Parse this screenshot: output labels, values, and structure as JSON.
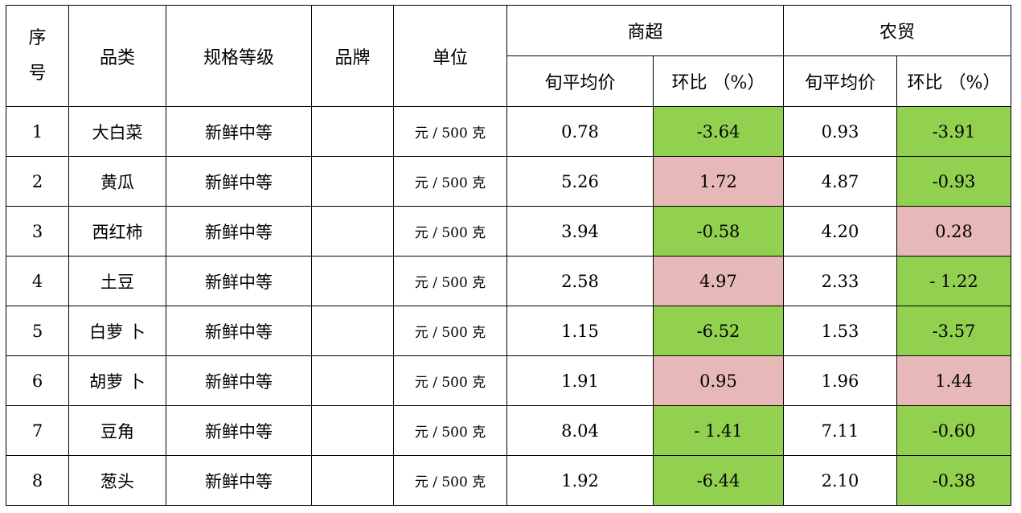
{
  "headers": {
    "seq": "序号",
    "category": "品类",
    "spec": "规格等级",
    "brand": "品牌",
    "unit": "单位",
    "supermarket": "商超",
    "farmers_market": "农贸",
    "avg_price": "旬平均价",
    "change_pct": "环比 （%）"
  },
  "rows": [
    {
      "seq": "1",
      "name": "大白菜",
      "spec": "新鲜中等",
      "brand": "",
      "unit": "元 / 500 克",
      "sm_price": "0.78",
      "sm_change": "-3.64",
      "sm_dir": "down",
      "fm_price": "0.93",
      "fm_change": "-3.91",
      "fm_dir": "down"
    },
    {
      "seq": "2",
      "name": "黄瓜",
      "spec": "新鲜中等",
      "brand": "",
      "unit": "元 / 500 克",
      "sm_price": "5.26",
      "sm_change": "1.72",
      "sm_dir": "up",
      "fm_price": "4.87",
      "fm_change": "-0.93",
      "fm_dir": "down"
    },
    {
      "seq": "3",
      "name": "西红柿",
      "spec": "新鲜中等",
      "brand": "",
      "unit": "元 / 500 克",
      "sm_price": "3.94",
      "sm_change": "-0.58",
      "sm_dir": "down",
      "fm_price": "4.20",
      "fm_change": "0.28",
      "fm_dir": "up"
    },
    {
      "seq": "4",
      "name": "土豆",
      "spec": "新鲜中等",
      "brand": "",
      "unit": "元 / 500 克",
      "sm_price": "2.58",
      "sm_change": "4.97",
      "sm_dir": "up",
      "fm_price": "2.33",
      "fm_change": "- 1.22",
      "fm_dir": "down"
    },
    {
      "seq": "5",
      "name": "白萝 卜",
      "spec": "新鲜中等",
      "brand": "",
      "unit": "元 / 500 克",
      "sm_price": "1.15",
      "sm_change": "-6.52",
      "sm_dir": "down",
      "fm_price": "1.53",
      "fm_change": "-3.57",
      "fm_dir": "down"
    },
    {
      "seq": "6",
      "name": "胡萝 卜",
      "spec": "新鲜中等",
      "brand": "",
      "unit": "元 / 500 克",
      "sm_price": "1.91",
      "sm_change": "0.95",
      "sm_dir": "up",
      "fm_price": "1.96",
      "fm_change": "1.44",
      "fm_dir": "up"
    },
    {
      "seq": "7",
      "name": "豆角",
      "spec": "新鲜中等",
      "brand": "",
      "unit": "元 / 500 克",
      "sm_price": "8.04",
      "sm_change": "- 1.41",
      "sm_dir": "down",
      "fm_price": "7.11",
      "fm_change": "-0.60",
      "fm_dir": "down"
    },
    {
      "seq": "8",
      "name": "葱头",
      "spec": "新鲜中等",
      "brand": "",
      "unit": "元 / 500 克",
      "sm_price": "1.92",
      "sm_change": "-6.44",
      "sm_dir": "down",
      "fm_price": "2.10",
      "fm_change": "-0.38",
      "fm_dir": "down"
    }
  ],
  "colors": {
    "down": "#92d050",
    "up": "#e6b8b8"
  }
}
